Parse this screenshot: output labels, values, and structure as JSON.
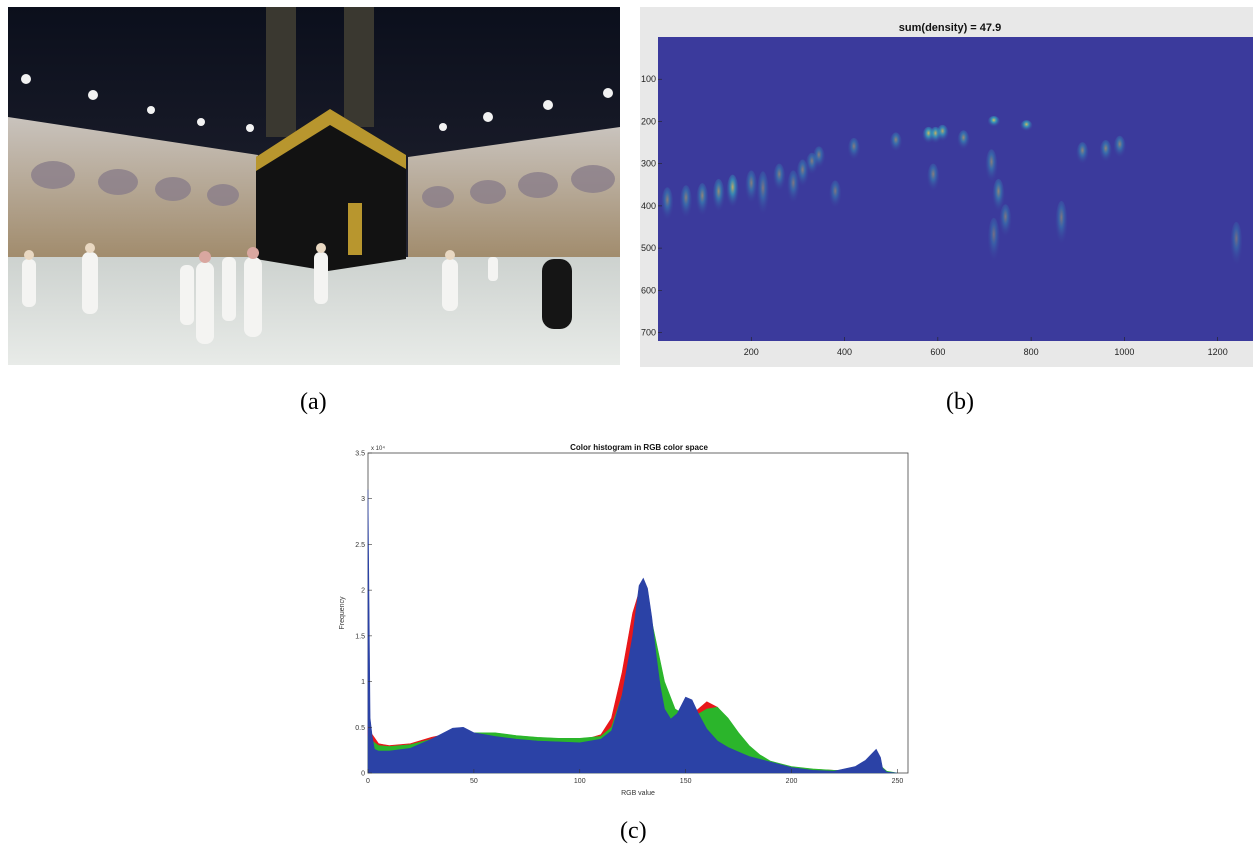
{
  "panels": {
    "a": {
      "caption": "(a)"
    },
    "b": {
      "caption": "(b)"
    },
    "c": {
      "caption": "(c)"
    }
  },
  "chart_data": [
    {
      "id": "b",
      "type": "heatmap",
      "title": "sum(density) = 47.9",
      "xlabel": "",
      "ylabel": "",
      "xlim": [
        0,
        1280
      ],
      "ylim": [
        0,
        720
      ],
      "y_reversed": true,
      "xticks": [
        200,
        400,
        600,
        800,
        1000,
        1200
      ],
      "yticks": [
        100,
        200,
        300,
        400,
        500,
        600,
        700
      ],
      "background_color": "#3b3a9c",
      "hotspots": [
        {
          "x": 20,
          "y": 380,
          "intensity": 0.45,
          "len": 60
        },
        {
          "x": 60,
          "y": 375,
          "intensity": 0.45,
          "len": 60
        },
        {
          "x": 95,
          "y": 370,
          "intensity": 0.5,
          "len": 60
        },
        {
          "x": 130,
          "y": 360,
          "intensity": 0.55,
          "len": 60
        },
        {
          "x": 160,
          "y": 350,
          "intensity": 0.75,
          "len": 60
        },
        {
          "x": 200,
          "y": 340,
          "intensity": 0.45,
          "len": 60
        },
        {
          "x": 225,
          "y": 350,
          "intensity": 0.4,
          "len": 80
        },
        {
          "x": 260,
          "y": 320,
          "intensity": 0.45,
          "len": 50
        },
        {
          "x": 290,
          "y": 340,
          "intensity": 0.4,
          "len": 60
        },
        {
          "x": 310,
          "y": 310,
          "intensity": 0.45,
          "len": 50
        },
        {
          "x": 330,
          "y": 290,
          "intensity": 0.45,
          "len": 40
        },
        {
          "x": 345,
          "y": 275,
          "intensity": 0.45,
          "len": 40
        },
        {
          "x": 380,
          "y": 360,
          "intensity": 0.4,
          "len": 50
        },
        {
          "x": 420,
          "y": 255,
          "intensity": 0.45,
          "len": 40
        },
        {
          "x": 510,
          "y": 240,
          "intensity": 0.5,
          "len": 35
        },
        {
          "x": 580,
          "y": 225,
          "intensity": 0.85,
          "len": 30
        },
        {
          "x": 595,
          "y": 225,
          "intensity": 0.8,
          "len": 30
        },
        {
          "x": 610,
          "y": 220,
          "intensity": 0.75,
          "len": 30
        },
        {
          "x": 590,
          "y": 320,
          "intensity": 0.45,
          "len": 50
        },
        {
          "x": 655,
          "y": 235,
          "intensity": 0.55,
          "len": 35
        },
        {
          "x": 720,
          "y": 195,
          "intensity": 0.9,
          "len": 20
        },
        {
          "x": 790,
          "y": 205,
          "intensity": 0.85,
          "len": 20
        },
        {
          "x": 715,
          "y": 290,
          "intensity": 0.45,
          "len": 60
        },
        {
          "x": 730,
          "y": 360,
          "intensity": 0.5,
          "len": 60
        },
        {
          "x": 745,
          "y": 420,
          "intensity": 0.4,
          "len": 60
        },
        {
          "x": 720,
          "y": 460,
          "intensity": 0.35,
          "len": 80
        },
        {
          "x": 865,
          "y": 420,
          "intensity": 0.4,
          "len": 80
        },
        {
          "x": 910,
          "y": 265,
          "intensity": 0.5,
          "len": 40
        },
        {
          "x": 960,
          "y": 260,
          "intensity": 0.5,
          "len": 40
        },
        {
          "x": 990,
          "y": 250,
          "intensity": 0.5,
          "len": 40
        },
        {
          "x": 1240,
          "y": 470,
          "intensity": 0.35,
          "len": 80
        }
      ]
    },
    {
      "id": "c",
      "type": "area",
      "title": "Color histogram in RGB color space",
      "xlabel": "RGB value",
      "ylabel": "Frequency",
      "xlim": [
        0,
        255
      ],
      "ylim": [
        0,
        35000
      ],
      "y_multiplier_label": "x 10⁴",
      "xticks": [
        0,
        50,
        100,
        150,
        200,
        250
      ],
      "yticks": [
        0,
        0.5,
        1,
        1.5,
        2,
        2.5,
        3,
        3.5
      ],
      "series": [
        {
          "name": "Red",
          "color": "#e8171a",
          "x": [
            0,
            2,
            5,
            10,
            20,
            30,
            40,
            50,
            60,
            70,
            80,
            90,
            100,
            110,
            115,
            120,
            125,
            128,
            130,
            132,
            135,
            140,
            145,
            150,
            155,
            160,
            165,
            170,
            175,
            180,
            185,
            190,
            200,
            210,
            220,
            225,
            230,
            235,
            238,
            240,
            242,
            245,
            250
          ],
          "values": [
            5000,
            4200,
            3200,
            3000,
            3200,
            3900,
            4400,
            4000,
            3700,
            3500,
            3400,
            3300,
            3500,
            4200,
            6000,
            11000,
            17500,
            19800,
            18500,
            16000,
            12000,
            8000,
            6500,
            6200,
            6800,
            7800,
            7200,
            5800,
            4200,
            2800,
            1800,
            1100,
            600,
            400,
            300,
            300,
            500,
            1000,
            1500,
            1200,
            400,
            100,
            0
          ]
        },
        {
          "name": "Green",
          "color": "#2bb52b",
          "x": [
            0,
            2,
            5,
            10,
            20,
            30,
            40,
            50,
            60,
            70,
            80,
            90,
            100,
            110,
            115,
            120,
            125,
            130,
            132,
            135,
            140,
            145,
            150,
            155,
            160,
            165,
            170,
            175,
            180,
            185,
            190,
            200,
            210,
            220,
            225,
            230,
            235,
            238,
            240,
            242,
            245,
            250
          ],
          "values": [
            4000,
            3500,
            3000,
            2900,
            3100,
            3700,
            4300,
            4400,
            4400,
            4100,
            3900,
            3800,
            3800,
            4000,
            5000,
            8500,
            14000,
            18500,
            18800,
            15500,
            10000,
            7000,
            6300,
            6300,
            7000,
            7200,
            6000,
            4400,
            3000,
            2000,
            1300,
            700,
            450,
            300,
            300,
            500,
            1200,
            1800,
            1500,
            800,
            200,
            0
          ]
        },
        {
          "name": "Blue",
          "color": "#2b42a6",
          "x": [
            0,
            1,
            2,
            3,
            5,
            10,
            20,
            30,
            40,
            45,
            50,
            60,
            70,
            80,
            90,
            100,
            110,
            115,
            120,
            125,
            128,
            130,
            132,
            134,
            136,
            138,
            140,
            143,
            146,
            150,
            153,
            156,
            160,
            165,
            170,
            175,
            180,
            190,
            200,
            210,
            220,
            230,
            235,
            240,
            242,
            243,
            245,
            250
          ],
          "values": [
            31000,
            6000,
            4000,
            2600,
            2400,
            2400,
            2700,
            3700,
            4900,
            5000,
            4400,
            4000,
            3700,
            3500,
            3400,
            3300,
            3700,
            4600,
            8500,
            15000,
            20500,
            21300,
            20200,
            17000,
            13000,
            9500,
            7000,
            5900,
            6500,
            8300,
            8000,
            6500,
            4800,
            3500,
            2800,
            2300,
            1800,
            1200,
            600,
            300,
            200,
            700,
            1400,
            2600,
            1700,
            500,
            100,
            0
          ]
        }
      ]
    }
  ]
}
